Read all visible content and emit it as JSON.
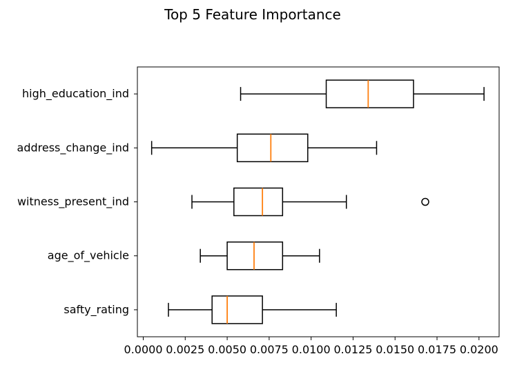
{
  "chart_data": {
    "type": "boxplot",
    "title": "Top 5 Feature Importance",
    "orientation": "horizontal",
    "xlim": [
      -0.00035,
      0.0212
    ],
    "xticks": [
      0.0,
      0.0025,
      0.005,
      0.0075,
      0.01,
      0.0125,
      0.015,
      0.0175,
      0.02
    ],
    "xtick_labels": [
      "0.0000",
      "0.0025",
      "0.0050",
      "0.0075",
      "0.0100",
      "0.0125",
      "0.0150",
      "0.0175",
      "0.0200"
    ],
    "categories": [
      "high_education_ind",
      "address_change_ind",
      "witness_present_ind",
      "age_of_vehicle",
      "safty_rating"
    ],
    "boxes": [
      {
        "label": "high_education_ind",
        "whisker_low": 0.0058,
        "q1": 0.0109,
        "median": 0.0134,
        "q3": 0.0161,
        "whisker_high": 0.0203,
        "outliers": []
      },
      {
        "label": "address_change_ind",
        "whisker_low": 0.0005,
        "q1": 0.0056,
        "median": 0.0076,
        "q3": 0.0098,
        "whisker_high": 0.0139,
        "outliers": []
      },
      {
        "label": "witness_present_ind",
        "whisker_low": 0.0029,
        "q1": 0.0054,
        "median": 0.0071,
        "q3": 0.0083,
        "whisker_high": 0.0121,
        "outliers": [
          0.0168
        ]
      },
      {
        "label": "age_of_vehicle",
        "whisker_low": 0.0034,
        "q1": 0.005,
        "median": 0.0066,
        "q3": 0.0083,
        "whisker_high": 0.0105,
        "outliers": []
      },
      {
        "label": "safty_rating",
        "whisker_low": 0.0015,
        "q1": 0.0041,
        "median": 0.005,
        "q3": 0.0071,
        "whisker_high": 0.0115,
        "outliers": []
      }
    ],
    "colors": {
      "box": "#000000",
      "median": "#ff7f0e",
      "background": "#ffffff"
    },
    "grid": false,
    "legend": "none"
  }
}
